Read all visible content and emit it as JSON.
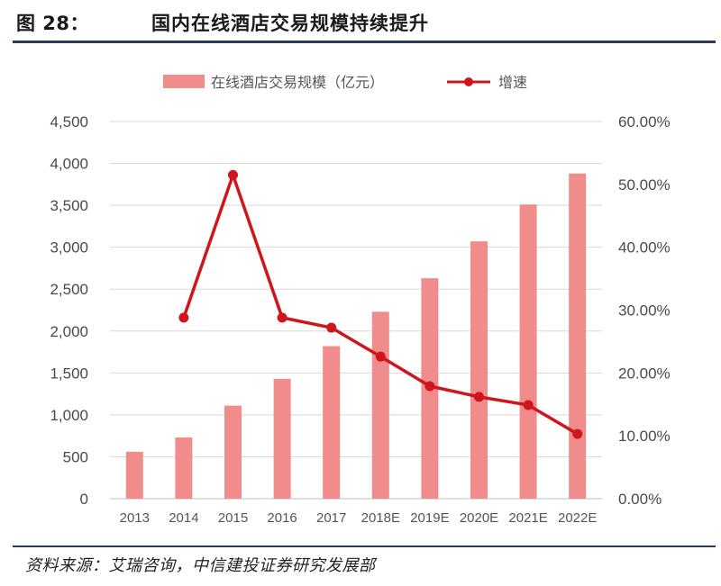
{
  "header": {
    "figure_label": "图 28：",
    "title": "国内在线酒店交易规模持续提升"
  },
  "source_note": "资料来源：艾瑞咨询，中信建投证券研究发展部",
  "colors": {
    "bar": "#f08c8c",
    "line": "#d0161d",
    "rule": "#2b3a5a",
    "grid": "#d9d9d9"
  },
  "chart_data": {
    "type": "bar",
    "categories": [
      "2013",
      "2014",
      "2015",
      "2016",
      "2017",
      "2018E",
      "2019E",
      "2020E",
      "2021E",
      "2022E"
    ],
    "series": [
      {
        "name": "在线酒店交易规模（亿元）",
        "type": "bar",
        "axis": "left",
        "values": [
          560,
          730,
          1110,
          1430,
          1820,
          2230,
          2630,
          3070,
          3510,
          3880
        ]
      },
      {
        "name": "增速",
        "type": "line",
        "axis": "right",
        "values": [
          null,
          28.8,
          51.5,
          28.8,
          27.2,
          22.6,
          17.9,
          16.2,
          14.9,
          10.3
        ]
      }
    ],
    "y_left": {
      "min": 0,
      "max": 4500,
      "ticks": [
        "0",
        "500",
        "1,000",
        "1,500",
        "2,000",
        "2,500",
        "3,000",
        "3,500",
        "4,000",
        "4,500"
      ]
    },
    "y_right": {
      "min": 0,
      "max": 60,
      "ticks": [
        "0.00%",
        "10.00%",
        "20.00%",
        "30.00%",
        "40.00%",
        "50.00%",
        "60.00%"
      ]
    },
    "grid": true,
    "legend_position": "top"
  }
}
